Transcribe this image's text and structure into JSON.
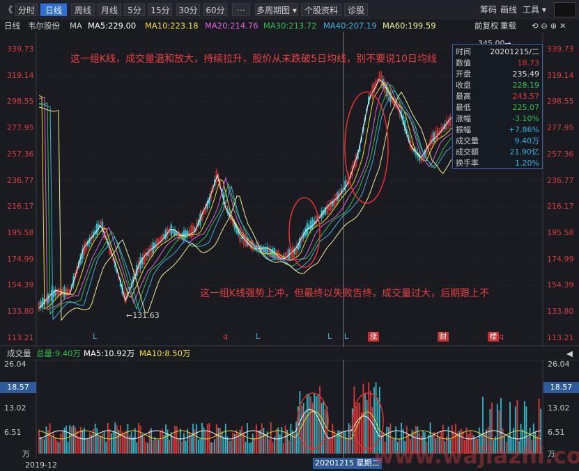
{
  "toolbar": {
    "back": "《",
    "buttons": [
      "分时",
      "日线",
      "周线",
      "月线",
      "5分",
      "15分",
      "30分",
      "60分",
      "···",
      "多周期图 ▾",
      "个股资料",
      "诊股"
    ],
    "active_index": 1,
    "right": [
      "筹码",
      "画线",
      "工具 ▾"
    ]
  },
  "info": {
    "period": "日线",
    "stock": "韦尔股份",
    "ma_label": "MA",
    "ma5": "MA5:229.00",
    "ma10": "MA10:223.18",
    "ma20": "MA20:214.76",
    "ma30": "MA30:213.72",
    "ma40": "MA40:207.19",
    "ma60": "MA60:199.59",
    "right1": "前复权",
    "right2": "重载"
  },
  "price_axis": [
    "339.73",
    "319.14",
    "298.55",
    "277.95",
    "257.36",
    "236.77",
    "216.17",
    "195.58",
    "174.99",
    "154.39",
    "133.80",
    "113.21"
  ],
  "annotations": {
    "top": "这一组K线，成交量温和放大，持续拉升，股价从未跌破5日均线，别不要说10日均线",
    "middle": "这一组K线强势上冲，但最终以失败告终，成交量过大，后期跟上不",
    "low_mark": "←131.63",
    "high_mark": "345.00→"
  },
  "tooltip": {
    "rows": [
      {
        "k": "时间",
        "v": "20201215/二",
        "c": "#e0e0e0"
      },
      {
        "k": "数值",
        "v": "18.73",
        "c": "#e03a3a"
      },
      {
        "k": "开盘",
        "v": "235.49",
        "c": "#e0e0e0"
      },
      {
        "k": "收盘",
        "v": "228.19",
        "c": "#2ec24a"
      },
      {
        "k": "最高",
        "v": "243.57",
        "c": "#e03a3a"
      },
      {
        "k": "最低",
        "v": "225.07",
        "c": "#2ec24a"
      },
      {
        "k": "涨幅",
        "v": "-3.10%",
        "c": "#2ec24a"
      },
      {
        "k": "振幅",
        "v": "+7.86%",
        "c": "#3ab0e8"
      },
      {
        "k": "成交量",
        "v": "9.40万",
        "c": "#3ab0e8"
      },
      {
        "k": "成交额",
        "v": "21.90亿",
        "c": "#3ab0e8"
      },
      {
        "k": "换手率",
        "v": "1.20%",
        "c": "#3ab0e8"
      }
    ]
  },
  "marks": [
    {
      "t": "L",
      "c": "#3ab0e8"
    },
    {
      "t": "q",
      "c": "#e03a3a"
    },
    {
      "t": "L",
      "c": "#3ab0e8"
    },
    {
      "t": "L",
      "c": "#3ab0e8"
    },
    {
      "t": "L",
      "c": "#3ab0e8"
    },
    {
      "t": "涨",
      "c": "#ffffff"
    },
    {
      "t": "财",
      "c": "#ffffff"
    },
    {
      "t": "楼",
      "c": "#ffffff"
    },
    {
      "t": "q",
      "c": "#e03a3a"
    }
  ],
  "volume": {
    "title": "成交量",
    "total": "总量:9.40万",
    "ma5": "MA5:10.92万",
    "ma10": "MA10:8.50万",
    "axis": [
      "26.04",
      "18.57",
      "13.02",
      "6.51",
      "万"
    ],
    "highlight": "18.57"
  },
  "footer": {
    "start": "2019-12",
    "cursor_date": "20201215 星期二",
    "watermark": "www.wajiazhi.com"
  },
  "colors": {
    "up": "#e03a3a",
    "down": "#2fb9c9",
    "ma5": "#ffffff",
    "ma10": "#f0e020",
    "ma20": "#e060e0",
    "ma30": "#2ec24a",
    "ma40": "#3ab0e8",
    "ma60": "#f0f090"
  }
}
